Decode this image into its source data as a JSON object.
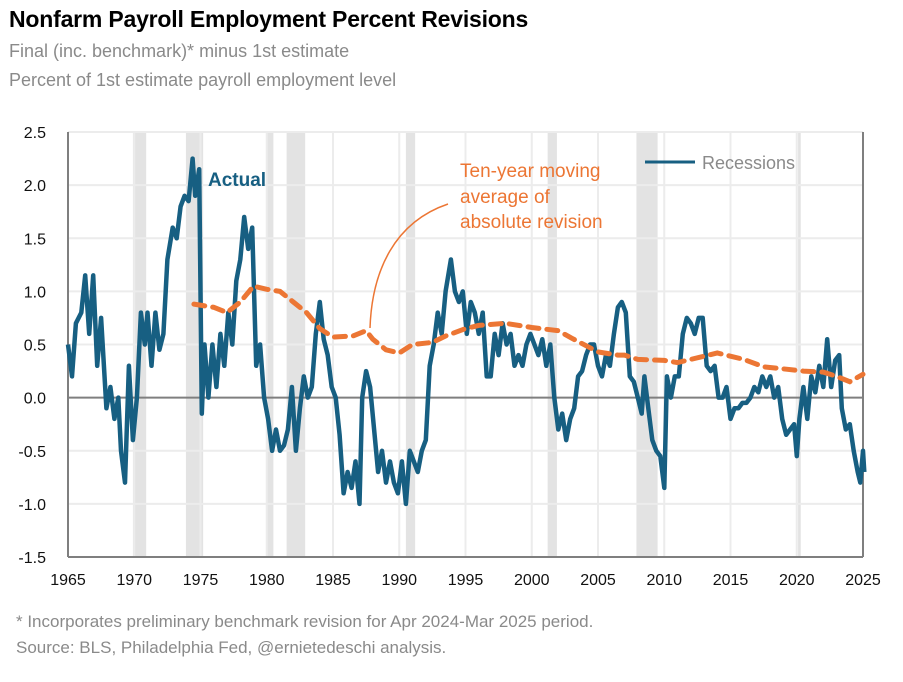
{
  "chart_data": {
    "type": "line",
    "title": "Nonfarm Payroll Employment Percent Revisions",
    "subtitle": [
      "Final (inc. benchmark)* minus 1st estimate",
      "Percent of 1st estimate payroll employment level"
    ],
    "xlim": [
      1965,
      2025
    ],
    "ylim": [
      -1.5,
      2.5
    ],
    "x_ticks": [
      "1965",
      "1970",
      "1975",
      "1980",
      "1985",
      "1990",
      "1995",
      "2000",
      "2005",
      "2010",
      "2015",
      "2020",
      "2025"
    ],
    "y_ticks": [
      "2.5",
      "2.0",
      "1.5",
      "1.0",
      "0.5",
      "0.0",
      "-0.5",
      "-1.0",
      "-1.5"
    ],
    "grid": true,
    "legend": {
      "label": "Recessions",
      "placement": "top-right"
    },
    "colors": {
      "actual": "#175f82",
      "moving_average": "#ec7634",
      "recession": "#e3e3e3"
    },
    "annotations": {
      "actual": "Actual",
      "moving_average": [
        "Ten-year moving",
        "average of",
        "absolute revision"
      ]
    },
    "recessions": [
      [
        1969.9,
        1970.9
      ],
      [
        1973.9,
        1975.2
      ],
      [
        1980.0,
        1980.5
      ],
      [
        1981.5,
        1982.9
      ],
      [
        1990.5,
        1991.2
      ],
      [
        2001.2,
        2001.9
      ],
      [
        2007.9,
        2009.5
      ],
      [
        2020.1,
        2020.3
      ]
    ],
    "series": [
      {
        "key": "actual",
        "x": [
          1965.0,
          1965.3,
          1965.6,
          1966.0,
          1966.3,
          1966.6,
          1966.9,
          1967.2,
          1967.5,
          1967.9,
          1968.2,
          1968.5,
          1968.8,
          1969.0,
          1969.3,
          1969.6,
          1969.9,
          1970.2,
          1970.5,
          1970.8,
          1971.0,
          1971.3,
          1971.6,
          1971.9,
          1972.2,
          1972.5,
          1972.9,
          1973.2,
          1973.5,
          1973.8,
          1974.1,
          1974.4,
          1974.6,
          1974.9,
          1975.1,
          1975.3,
          1975.6,
          1975.9,
          1976.2,
          1976.5,
          1976.8,
          1977.1,
          1977.4,
          1977.7,
          1978.0,
          1978.3,
          1978.6,
          1978.9,
          1979.2,
          1979.5,
          1979.8,
          1980.1,
          1980.4,
          1980.7,
          1981.0,
          1981.3,
          1981.6,
          1981.9,
          1982.2,
          1982.5,
          1982.8,
          1983.1,
          1983.4,
          1983.7,
          1984.0,
          1984.3,
          1984.6,
          1984.9,
          1985.2,
          1985.5,
          1985.8,
          1986.1,
          1986.4,
          1986.7,
          1987.0,
          1987.2,
          1987.5,
          1987.8,
          1988.1,
          1988.4,
          1988.7,
          1989.0,
          1989.3,
          1989.6,
          1989.9,
          1990.2,
          1990.5,
          1990.8,
          1991.1,
          1991.4,
          1991.7,
          1992.0,
          1992.3,
          1992.6,
          1992.9,
          1993.2,
          1993.5,
          1993.9,
          1994.2,
          1994.5,
          1994.8,
          1995.1,
          1995.4,
          1995.7,
          1996.0,
          1996.3,
          1996.6,
          1996.9,
          1997.2,
          1997.5,
          1997.8,
          1998.1,
          1998.4,
          1998.7,
          1999.0,
          1999.3,
          1999.6,
          1999.9,
          2000.2,
          2000.5,
          2000.8,
          2001.1,
          2001.4,
          2001.7,
          2002.0,
          2002.3,
          2002.6,
          2002.9,
          2003.2,
          2003.5,
          2003.8,
          2004.1,
          2004.4,
          2004.7,
          2005.0,
          2005.3,
          2005.6,
          2005.9,
          2006.2,
          2006.5,
          2006.8,
          2007.1,
          2007.4,
          2007.7,
          2008.0,
          2008.3,
          2008.5,
          2008.8,
          2009.1,
          2009.4,
          2009.7,
          2010.0,
          2010.2,
          2010.5,
          2010.8,
          2011.1,
          2011.4,
          2011.7,
          2012.0,
          2012.3,
          2012.6,
          2012.9,
          2013.2,
          2013.5,
          2013.8,
          2014.1,
          2014.4,
          2014.7,
          2015.0,
          2015.3,
          2015.6,
          2015.9,
          2016.2,
          2016.5,
          2016.8,
          2017.1,
          2017.4,
          2017.7,
          2018.0,
          2018.3,
          2018.6,
          2018.9,
          2019.2,
          2019.5,
          2019.8,
          2020.0,
          2020.2,
          2020.5,
          2020.8,
          2021.1,
          2021.4,
          2021.7,
          2022.0,
          2022.3,
          2022.6,
          2022.9,
          2023.2,
          2023.4,
          2023.7,
          2024.0,
          2024.3,
          2024.6,
          2024.8,
          2025.0,
          2025.1
        ],
        "values": [
          0.5,
          0.2,
          0.7,
          0.8,
          1.15,
          0.6,
          1.15,
          0.3,
          0.75,
          -0.1,
          0.1,
          -0.2,
          0.0,
          -0.5,
          -0.8,
          0.3,
          -0.4,
          0.0,
          0.8,
          0.5,
          0.8,
          0.3,
          0.8,
          0.45,
          0.6,
          1.3,
          1.6,
          1.5,
          1.8,
          1.9,
          1.85,
          2.25,
          1.9,
          2.15,
          -0.15,
          0.5,
          0.0,
          0.5,
          0.1,
          0.6,
          0.3,
          0.8,
          0.5,
          1.1,
          1.3,
          1.7,
          1.4,
          1.6,
          0.3,
          0.5,
          0.0,
          -0.2,
          -0.5,
          -0.3,
          -0.5,
          -0.45,
          -0.3,
          0.1,
          -0.5,
          -0.1,
          0.2,
          0.0,
          0.1,
          0.6,
          0.9,
          0.55,
          0.4,
          0.1,
          0.0,
          -0.35,
          -0.9,
          -0.7,
          -0.85,
          -0.6,
          -1.0,
          0.0,
          0.25,
          0.1,
          -0.3,
          -0.7,
          -0.5,
          -0.8,
          -0.6,
          -0.8,
          -0.9,
          -0.6,
          -1.0,
          -0.5,
          -0.6,
          -0.7,
          -0.5,
          -0.4,
          0.3,
          0.5,
          0.8,
          0.6,
          1.0,
          1.3,
          1.0,
          0.9,
          1.0,
          0.6,
          0.9,
          0.8,
          0.6,
          0.8,
          0.2,
          0.2,
          0.6,
          0.4,
          0.7,
          0.5,
          0.6,
          0.3,
          0.4,
          0.3,
          0.5,
          0.6,
          0.5,
          0.4,
          0.55,
          0.3,
          0.5,
          0.0,
          -0.3,
          -0.15,
          -0.4,
          -0.2,
          -0.1,
          0.2,
          0.25,
          0.4,
          0.5,
          0.5,
          0.3,
          0.2,
          0.4,
          0.3,
          0.6,
          0.85,
          0.9,
          0.8,
          0.2,
          0.15,
          0.0,
          -0.15,
          0.2,
          -0.1,
          -0.4,
          -0.5,
          -0.55,
          -0.85,
          0.2,
          0.0,
          0.2,
          0.2,
          0.6,
          0.75,
          0.7,
          0.6,
          0.75,
          0.75,
          0.3,
          0.25,
          0.3,
          0.0,
          0.0,
          0.1,
          -0.2,
          -0.1,
          -0.1,
          -0.05,
          -0.05,
          0.0,
          0.1,
          0.05,
          0.2,
          0.1,
          0.2,
          0.0,
          0.1,
          -0.2,
          -0.35,
          -0.3,
          -0.25,
          -0.55,
          -0.2,
          0.1,
          -0.2,
          0.2,
          0.05,
          0.3,
          0.1,
          0.55,
          0.1,
          0.35,
          0.4,
          -0.1,
          -0.3,
          -0.25,
          -0.5,
          -0.7,
          -0.8,
          -0.5,
          -0.7
        ]
      },
      {
        "key": "moving_average",
        "x": [
          1974.5,
          1976,
          1977,
          1978,
          1979,
          1980,
          1981,
          1982,
          1983,
          1984,
          1985,
          1986.5,
          1987.5,
          1988,
          1989,
          1990,
          1991,
          1992.5,
          1993.5,
          1995,
          1996,
          1998,
          2000,
          2002,
          2003,
          2005,
          2006.5,
          2007,
          2008,
          2010,
          2011,
          2012,
          2013,
          2014,
          2016,
          2017.5,
          2019,
          2020.5,
          2022,
          2023,
          2024,
          2025
        ],
        "values": [
          0.88,
          0.85,
          0.8,
          0.9,
          1.05,
          1.02,
          1.0,
          0.9,
          0.8,
          0.65,
          0.57,
          0.58,
          0.63,
          0.55,
          0.45,
          0.42,
          0.5,
          0.52,
          0.58,
          0.65,
          0.68,
          0.7,
          0.66,
          0.63,
          0.56,
          0.43,
          0.4,
          0.4,
          0.36,
          0.35,
          0.33,
          0.36,
          0.39,
          0.42,
          0.36,
          0.29,
          0.27,
          0.25,
          0.24,
          0.2,
          0.15,
          0.22
        ]
      }
    ]
  },
  "footnotes": [
    "* Incorporates preliminary benchmark revision for Apr 2024-Mar 2025 period.",
    "Source: BLS, Philadelphia Fed, @ernietedeschi analysis."
  ]
}
